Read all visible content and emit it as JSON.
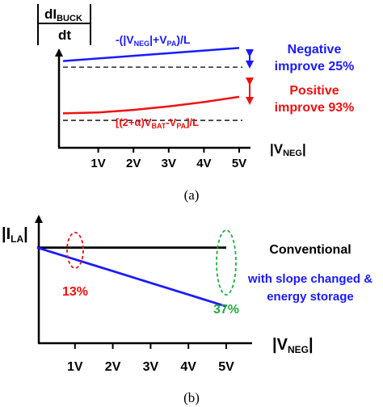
{
  "chart_data": [
    {
      "type": "line",
      "caption": "(a)",
      "ylabel": {
        "main": "dI",
        "sub": "BUCK",
        "denominator": "dt"
      },
      "xlabel": {
        "pre": "|V",
        "sub": "NEG",
        "post": "|"
      },
      "categories": [
        "1V",
        "2V",
        "3V",
        "4V",
        "5V"
      ],
      "series": [
        {
          "label_parts": [
            "-(|V",
            "NEG",
            "|+V",
            "PA",
            ")/L"
          ],
          "color": "#1a1aff",
          "x": [
            0,
            1,
            2,
            3,
            4,
            5
          ],
          "y": [
            0.8,
            0.83,
            0.86,
            0.89,
            0.92,
            0.95
          ]
        },
        {
          "label_parts": [
            "[(2+α)V",
            "BAT",
            "-V",
            "PA",
            "]/L"
          ],
          "color": "#ee1111",
          "x": [
            0,
            1,
            2,
            3,
            4,
            5
          ],
          "y": [
            0.2,
            0.21,
            0.24,
            0.28,
            0.33,
            0.39
          ]
        }
      ],
      "baselines": [
        0.73,
        0.12
      ],
      "annotations": [
        {
          "lines": [
            "Negative",
            "improve 25%"
          ],
          "color": "#1a1aff"
        },
        {
          "lines": [
            "Positive",
            "improve 93%"
          ],
          "color": "#ee1111"
        }
      ]
    },
    {
      "type": "line",
      "caption": "(b)",
      "ylabel": {
        "pre": "|I",
        "sub": "LA",
        "post": "|"
      },
      "xlabel": {
        "pre": "|V",
        "sub": "NEG",
        "post": "|"
      },
      "categories": [
        "1V",
        "2V",
        "3V",
        "4V",
        "5V"
      ],
      "series": [
        {
          "name": "Conventional",
          "color": "#000000",
          "x": [
            0,
            1,
            2,
            3,
            4,
            5
          ],
          "y": [
            0.8,
            0.8,
            0.8,
            0.8,
            0.8,
            0.8
          ]
        },
        {
          "name": "with slope changed & energy storage",
          "legend_lines": [
            "with slope changed &",
            "energy storage"
          ],
          "color": "#1a1aff",
          "x": [
            0,
            1,
            2,
            3,
            4,
            5
          ],
          "y": [
            0.8,
            0.73,
            0.66,
            0.59,
            0.52,
            0.45
          ]
        }
      ],
      "annotations": [
        {
          "text": "13%",
          "color": "#ee1111",
          "at_x": 1
        },
        {
          "text": "37%",
          "color": "#22aa44",
          "at_x": 5
        }
      ]
    }
  ]
}
